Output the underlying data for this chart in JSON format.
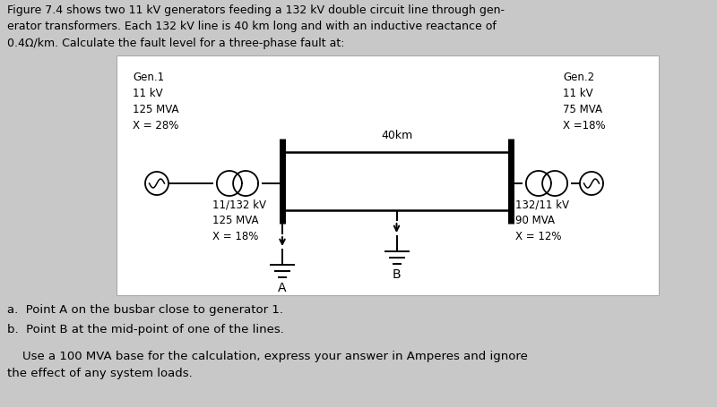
{
  "bg_color": "#c8c8c8",
  "box_bg": "#ffffff",
  "title_text": "Figure 7.4 shows two 11 kV generators feeding a 132 kV double circuit line through gen-\nerator transformers. Each 132 kV line is 40 km long and with an inductive reactance of\n0.4Ω/km. Calculate the fault level for a three-phase fault at:",
  "gen1_label": "Gen.1\n11 kV\n125 MVA\nX = 28%",
  "gen2_label": "Gen.2\n11 kV\n75 MVA\nX =18%",
  "tr1_label": "11/132 kV\n125 MVA\nX = 18%",
  "tr2_label": "132/11 kV\n90 MVA\nX = 12%",
  "line_label": "40km",
  "point_a": "A",
  "point_b": "B",
  "footer_a": "a.  Point A on the busbar close to generator 1.",
  "footer_b": "b.  Point B at the mid-point of one of the lines.",
  "footer_c": "    Use a 100 MVA base for the calculation, express your answer in Amperes and ignore\nthe effect of any system loads.",
  "text_color": "#000000"
}
